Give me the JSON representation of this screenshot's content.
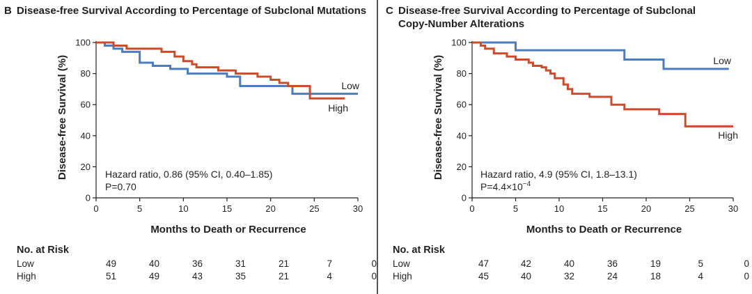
{
  "chart_data": [
    {
      "type": "line",
      "panel_letter": "B",
      "title": "Disease-free Survival According to Percentage of Subclonal Mutations",
      "xlabel": "Months to Death or Recurrence",
      "ylabel": "Disease-free Survival (%)",
      "xlim": [
        0,
        30
      ],
      "ylim": [
        0,
        100
      ],
      "xticks": [
        "0",
        "5",
        "10",
        "15",
        "20",
        "25",
        "30"
      ],
      "yticks": [
        "0",
        "20",
        "40",
        "60",
        "80",
        "100"
      ],
      "annotation": {
        "line1": "Hazard ratio, 0.86 (95% CI, 0.40–1.85)",
        "line2": "P=0.70"
      },
      "series": [
        {
          "name": "Low",
          "color": "#4a7dc0",
          "steps": [
            [
              0,
              100
            ],
            [
              1,
              98
            ],
            [
              2,
              96
            ],
            [
              3,
              94
            ],
            [
              5,
              87
            ],
            [
              6.5,
              85
            ],
            [
              8.5,
              83
            ],
            [
              10.5,
              80
            ],
            [
              15,
              78
            ],
            [
              16.5,
              72
            ],
            [
              22.5,
              67
            ],
            [
              28.5,
              67
            ],
            [
              30,
              67
            ]
          ]
        },
        {
          "name": "High",
          "color": "#cc4b2b",
          "steps": [
            [
              0,
              100
            ],
            [
              2,
              98
            ],
            [
              3.5,
              96
            ],
            [
              7.5,
              94
            ],
            [
              9,
              91
            ],
            [
              10,
              88
            ],
            [
              11,
              86
            ],
            [
              11.5,
              84
            ],
            [
              14,
              82
            ],
            [
              16,
              80
            ],
            [
              18.5,
              78
            ],
            [
              20,
              76
            ],
            [
              21,
              74
            ],
            [
              22,
              72
            ],
            [
              24.5,
              64
            ],
            [
              28.5,
              64
            ]
          ]
        }
      ],
      "risk_table": {
        "header": "No. at Risk",
        "rows": [
          {
            "label": "Low",
            "values": [
              "49",
              "40",
              "36",
              "31",
              "21",
              "7",
              "0"
            ]
          },
          {
            "label": "High",
            "values": [
              "51",
              "49",
              "43",
              "35",
              "21",
              "4",
              "0"
            ]
          }
        ]
      }
    },
    {
      "type": "line",
      "panel_letter": "C",
      "title_line1": "Disease-free Survival According to Percentage of Subclonal",
      "title_line2": "Copy-Number Alterations",
      "xlabel": "Months to Death or Recurrence",
      "ylabel": "Disease-free Survival (%)",
      "xlim": [
        0,
        30
      ],
      "ylim": [
        0,
        100
      ],
      "xticks": [
        "0",
        "5",
        "10",
        "15",
        "20",
        "25",
        "30"
      ],
      "yticks": [
        "0",
        "20",
        "40",
        "60",
        "80",
        "100"
      ],
      "annotation": {
        "line1": "Hazard ratio, 4.9 (95% CI, 1.8–13.1)",
        "line2": "P=4.4×10",
        "line2_sup": "−4"
      },
      "series": [
        {
          "name": "Low",
          "color": "#4a7dc0",
          "steps": [
            [
              0,
              100
            ],
            [
              5,
              95
            ],
            [
              17.5,
              89
            ],
            [
              22,
              83
            ],
            [
              29.5,
              83
            ]
          ]
        },
        {
          "name": "High",
          "color": "#cc4b2b",
          "steps": [
            [
              0,
              100
            ],
            [
              1,
              98
            ],
            [
              1.5,
              96
            ],
            [
              2.5,
              93
            ],
            [
              4,
              91
            ],
            [
              5,
              89
            ],
            [
              6.5,
              87
            ],
            [
              7,
              85
            ],
            [
              8,
              84
            ],
            [
              8.5,
              82
            ],
            [
              9,
              80
            ],
            [
              9.5,
              77
            ],
            [
              10.5,
              73
            ],
            [
              11,
              70
            ],
            [
              11.5,
              67
            ],
            [
              13.5,
              65
            ],
            [
              16,
              60
            ],
            [
              17.5,
              57
            ],
            [
              21.5,
              54
            ],
            [
              24.5,
              46
            ],
            [
              30,
              46
            ]
          ]
        }
      ],
      "risk_table": {
        "header": "No. at Risk",
        "rows": [
          {
            "label": "Low",
            "values": [
              "47",
              "42",
              "40",
              "36",
              "19",
              "5",
              "0"
            ]
          },
          {
            "label": "High",
            "values": [
              "45",
              "40",
              "32",
              "24",
              "18",
              "4",
              "0"
            ]
          }
        ]
      }
    }
  ]
}
